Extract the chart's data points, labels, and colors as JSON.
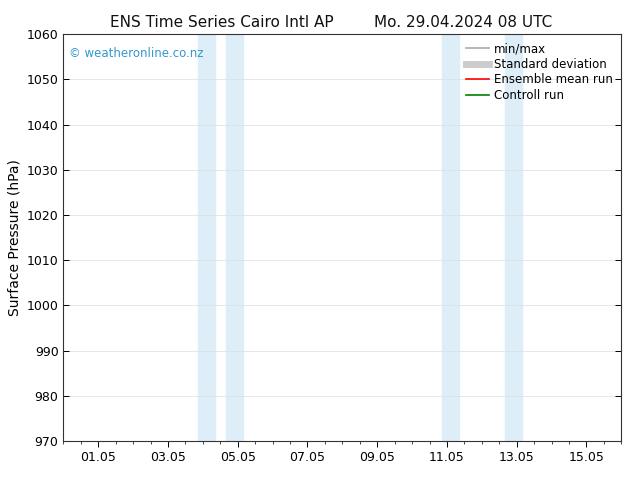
{
  "title_left": "ENS Time Series Cairo Intl AP",
  "title_right": "Mo. 29.04.2024 08 UTC",
  "ylabel": "Surface Pressure (hPa)",
  "ylim": [
    970,
    1060
  ],
  "yticks": [
    970,
    980,
    990,
    1000,
    1010,
    1020,
    1030,
    1040,
    1050,
    1060
  ],
  "xlim_start": 0.0,
  "xlim_end": 16.0,
  "xtick_positions": [
    1.0,
    3.0,
    5.0,
    7.0,
    9.0,
    11.0,
    13.0,
    15.0
  ],
  "xtick_labels": [
    "01.05",
    "03.05",
    "05.05",
    "07.05",
    "09.05",
    "11.05",
    "13.05",
    "15.05"
  ],
  "shaded_bands": [
    {
      "x_start": 3.85,
      "x_end": 4.35
    },
    {
      "x_start": 4.65,
      "x_end": 5.15
    },
    {
      "x_start": 10.85,
      "x_end": 11.35
    },
    {
      "x_start": 12.65,
      "x_end": 13.15
    }
  ],
  "shaded_color": "#ddeef8",
  "background_color": "#ffffff",
  "grid_color": "#dddddd",
  "watermark_text": "© weatheronline.co.nz",
  "watermark_color": "#3399cc",
  "legend_entries": [
    {
      "label": "min/max",
      "color": "#aaaaaa",
      "lw": 1.2,
      "style": "solid"
    },
    {
      "label": "Standard deviation",
      "color": "#cccccc",
      "lw": 5,
      "style": "solid"
    },
    {
      "label": "Ensemble mean run",
      "color": "#ff0000",
      "lw": 1.2,
      "style": "solid"
    },
    {
      "label": "Controll run",
      "color": "#008000",
      "lw": 1.2,
      "style": "solid"
    }
  ],
  "title_fontsize": 11,
  "axis_label_fontsize": 10,
  "tick_fontsize": 9,
  "legend_fontsize": 8.5
}
